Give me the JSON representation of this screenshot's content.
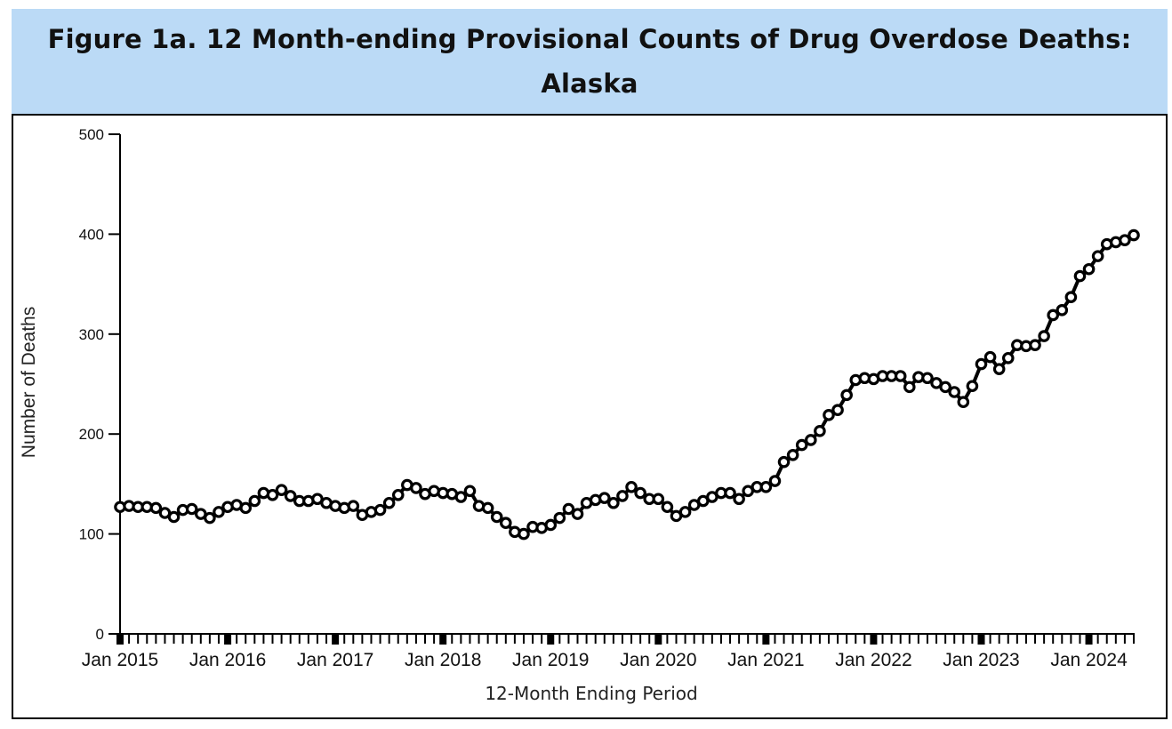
{
  "figure": {
    "title": "Figure 1a. 12 Month-ending Provisional Counts of Drug Overdose Deaths: Alaska",
    "header_background": "#bbdaf6",
    "line_color": "#000000"
  },
  "chart_data": {
    "type": "line",
    "title": "Figure 1a. 12 Month-ending Provisional Counts of Drug Overdose Deaths: Alaska",
    "xlabel": "12-Month Ending Period",
    "ylabel": "Number of Deaths",
    "ylim": [
      0,
      500
    ],
    "yticks": [
      0,
      100,
      200,
      300,
      400,
      500
    ],
    "x_start": "Jan 2015",
    "x_end": "Jun 2024",
    "x_interval": "month",
    "xtick_labels": [
      "Jan 2015",
      "Jan 2016",
      "Jan 2017",
      "Jan 2018",
      "Jan 2019",
      "Jan 2020",
      "Jan 2021",
      "Jan 2022",
      "Jan 2023",
      "Jan 2024"
    ],
    "grid": false,
    "legend": "none",
    "markers": "open-circle",
    "series": [
      {
        "name": "Alaska",
        "values": [
          127,
          128,
          127,
          127,
          126,
          121,
          117,
          124,
          125,
          120,
          116,
          122,
          127,
          129,
          126,
          133,
          141,
          139,
          144,
          138,
          133,
          133,
          135,
          131,
          128,
          126,
          128,
          119,
          122,
          124,
          131,
          139,
          149,
          146,
          140,
          143,
          141,
          140,
          137,
          143,
          128,
          126,
          117,
          111,
          102,
          100,
          107,
          106,
          109,
          116,
          125,
          120,
          131,
          134,
          136,
          131,
          138,
          147,
          141,
          135,
          135,
          127,
          118,
          122,
          129,
          133,
          137,
          141,
          141,
          135,
          143,
          147,
          147,
          153,
          172,
          179,
          189,
          194,
          203,
          219,
          224,
          239,
          254,
          256,
          255,
          258,
          258,
          258,
          247,
          257,
          256,
          251,
          247,
          242,
          232,
          248,
          270,
          277,
          265,
          276,
          289,
          288,
          289,
          298,
          319,
          324,
          337,
          358,
          365,
          378,
          390,
          392,
          394,
          399
        ]
      }
    ]
  }
}
